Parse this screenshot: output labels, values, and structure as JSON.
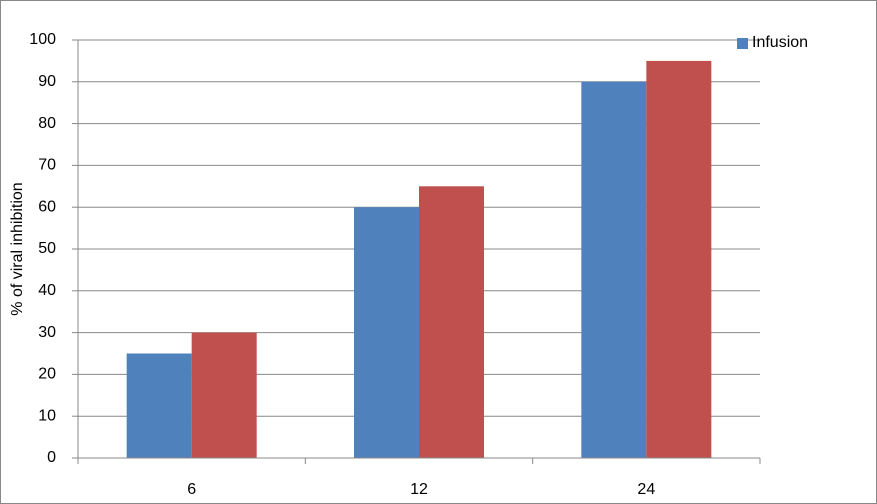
{
  "chart_data": {
    "type": "bar",
    "y_label": "% of viral  inhibition",
    "categories": [
      "6",
      "12",
      "24"
    ],
    "series": [
      {
        "name": "Infusion",
        "color": "#4f81bd",
        "values": [
          25,
          60,
          90
        ]
      },
      {
        "color": "#c0504d",
        "values": [
          30,
          65,
          95
        ]
      }
    ],
    "ylim": [
      0,
      100
    ],
    "yticks": [
      0,
      10,
      20,
      30,
      40,
      50,
      60,
      70,
      80,
      90,
      100
    ],
    "grid": true,
    "legend": "top-right"
  }
}
